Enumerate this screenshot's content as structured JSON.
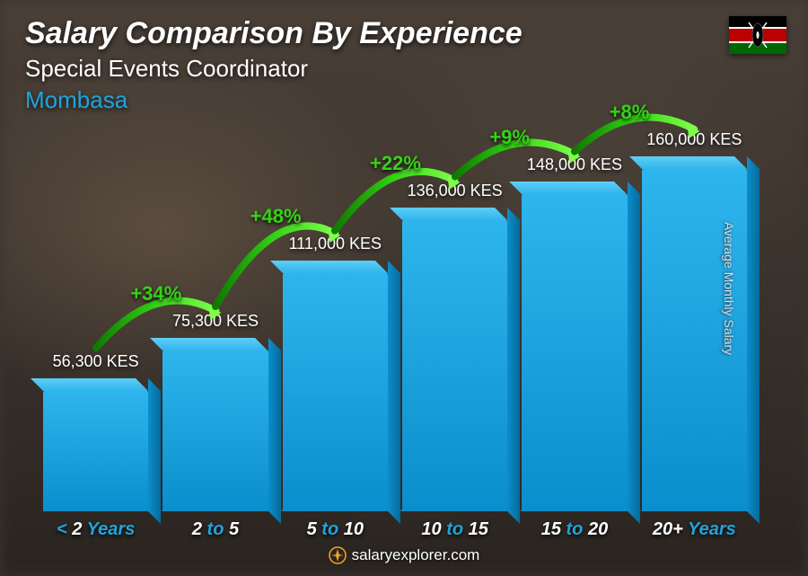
{
  "header": {
    "title": "Salary Comparison By Experience",
    "subtitle": "Special Events Coordinator",
    "location": "Mombasa"
  },
  "flag": {
    "country": "Kenya",
    "stripes": [
      "#000000",
      "#ffffff",
      "#bb0000",
      "#ffffff",
      "#006600"
    ],
    "shield_bg": "#bb0000",
    "shield_trim": "#ffffff"
  },
  "chart": {
    "type": "bar",
    "y_label": "Average Monthly Salary",
    "currency": "KES",
    "value_max_ref": 180000,
    "bar_gradient_top": "#2fb5ed",
    "bar_gradient_bottom": "#0a8ecc",
    "bar_top_highlight": "#5fcef6",
    "bar_side_shade": "#066a99",
    "background_overlay": "#3a3530",
    "pct_color": "#34d315",
    "value_text_color": "#ffffff",
    "value_fontsize": 18,
    "pct_fontsize": 22,
    "axis_label_color": "#1fa4dd",
    "axis_number_color": "#ffffff",
    "axis_fontsize": 20,
    "bars": [
      {
        "label_prefix": "< ",
        "label_num": "2",
        "label_suffix": " Years",
        "value": 56300,
        "value_label": "56,300 KES",
        "pct_increase": null
      },
      {
        "label_prefix": "",
        "label_num": "2",
        "label_mid": " to ",
        "label_num2": "5",
        "label_suffix": "",
        "value": 75300,
        "value_label": "75,300 KES",
        "pct_increase": "+34%"
      },
      {
        "label_prefix": "",
        "label_num": "5",
        "label_mid": " to ",
        "label_num2": "10",
        "label_suffix": "",
        "value": 111000,
        "value_label": "111,000 KES",
        "pct_increase": "+48%"
      },
      {
        "label_prefix": "",
        "label_num": "10",
        "label_mid": " to ",
        "label_num2": "15",
        "label_suffix": "",
        "value": 136000,
        "value_label": "136,000 KES",
        "pct_increase": "+22%"
      },
      {
        "label_prefix": "",
        "label_num": "15",
        "label_mid": " to ",
        "label_num2": "20",
        "label_suffix": "",
        "value": 148000,
        "value_label": "148,000 KES",
        "pct_increase": "+9%"
      },
      {
        "label_prefix": "",
        "label_num": "20+",
        "label_suffix": " Years",
        "value": 160000,
        "value_label": "160,000 KES",
        "pct_increase": "+8%"
      }
    ]
  },
  "footer": {
    "brand": "salaryexplorer.com",
    "logo_color": "#f5a623"
  }
}
